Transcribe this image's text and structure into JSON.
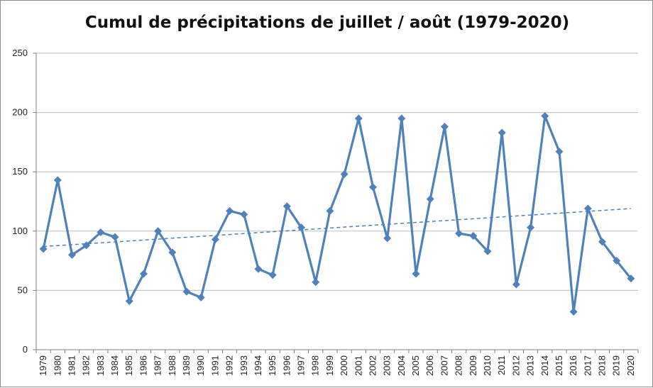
{
  "chart_data": {
    "type": "line",
    "title": "Cumul de précipitations de juillet / août (1979-2020)",
    "xlabel": "",
    "ylabel": "",
    "ylim": [
      0,
      250
    ],
    "yticks": [
      0,
      50,
      100,
      150,
      200,
      250
    ],
    "grid": true,
    "legend": "none",
    "x": [
      "1979",
      "1980",
      "1981",
      "1982",
      "1983",
      "1984",
      "1985",
      "1986",
      "1987",
      "1988",
      "1989",
      "1990",
      "1991",
      "1992",
      "1993",
      "1994",
      "1995",
      "1996",
      "1997",
      "1998",
      "1999",
      "2000",
      "2001",
      "2002",
      "2003",
      "2004",
      "2005",
      "2006",
      "2007",
      "2008",
      "2009",
      "2010",
      "2011",
      "2012",
      "2013",
      "2014",
      "2015",
      "2016",
      "2017",
      "2018",
      "2019",
      "2020"
    ],
    "series": [
      {
        "values": [
          85,
          143,
          80,
          88,
          99,
          95,
          41,
          64,
          100,
          82,
          49,
          44,
          93,
          117,
          114,
          68,
          63,
          121,
          103,
          57,
          117,
          148,
          195,
          137,
          94,
          195,
          64,
          127,
          188,
          98,
          96,
          83,
          183,
          55,
          103,
          197,
          167,
          32,
          119,
          91,
          75,
          60
        ],
        "color": "#4f81bd",
        "marker": "diamond"
      }
    ],
    "trendline": {
      "start": 87,
      "end": 119,
      "color": "#4f81bd",
      "style": "dashed"
    }
  }
}
